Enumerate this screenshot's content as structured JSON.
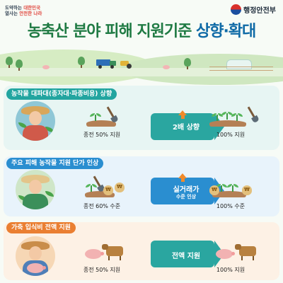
{
  "header": {
    "slogan_line1_prefix": "도약하는 ",
    "slogan_line1_highlight": "대한민국",
    "slogan_line2_prefix": "열사는 ",
    "slogan_line2_highlight": "안전한 나라",
    "ministry": "행정안전부"
  },
  "title": {
    "main": "농축산 분야 피해 지원기준 ",
    "accent": "상향·확대"
  },
  "sections": [
    {
      "label": "농작물 대파대(종자대·파종비용) 상향",
      "before_caption": "종전 50% 지원",
      "change_text": "2배 상향",
      "after_caption": "100% 지원"
    },
    {
      "label": "주요 피해 농작물 지원 단가 인상",
      "before_caption": "종전 60% 수준",
      "change_text_line1": "실거래가",
      "change_text_line2": "수준 인상",
      "after_caption": "100% 수준"
    },
    {
      "label": "가축 입식비 전액 지원",
      "before_caption": "종전 50% 지원",
      "change_text": "전액 지원",
      "after_caption": "100% 지원"
    }
  ],
  "coin_symbol": "₩",
  "colors": {
    "title_green": "#1f7a43",
    "title_blue": "#0f6aa6",
    "section1": "#22a5a0",
    "section2": "#2a8ed0",
    "section3": "#ea7f32",
    "arrow_up": "#f08a2a"
  }
}
